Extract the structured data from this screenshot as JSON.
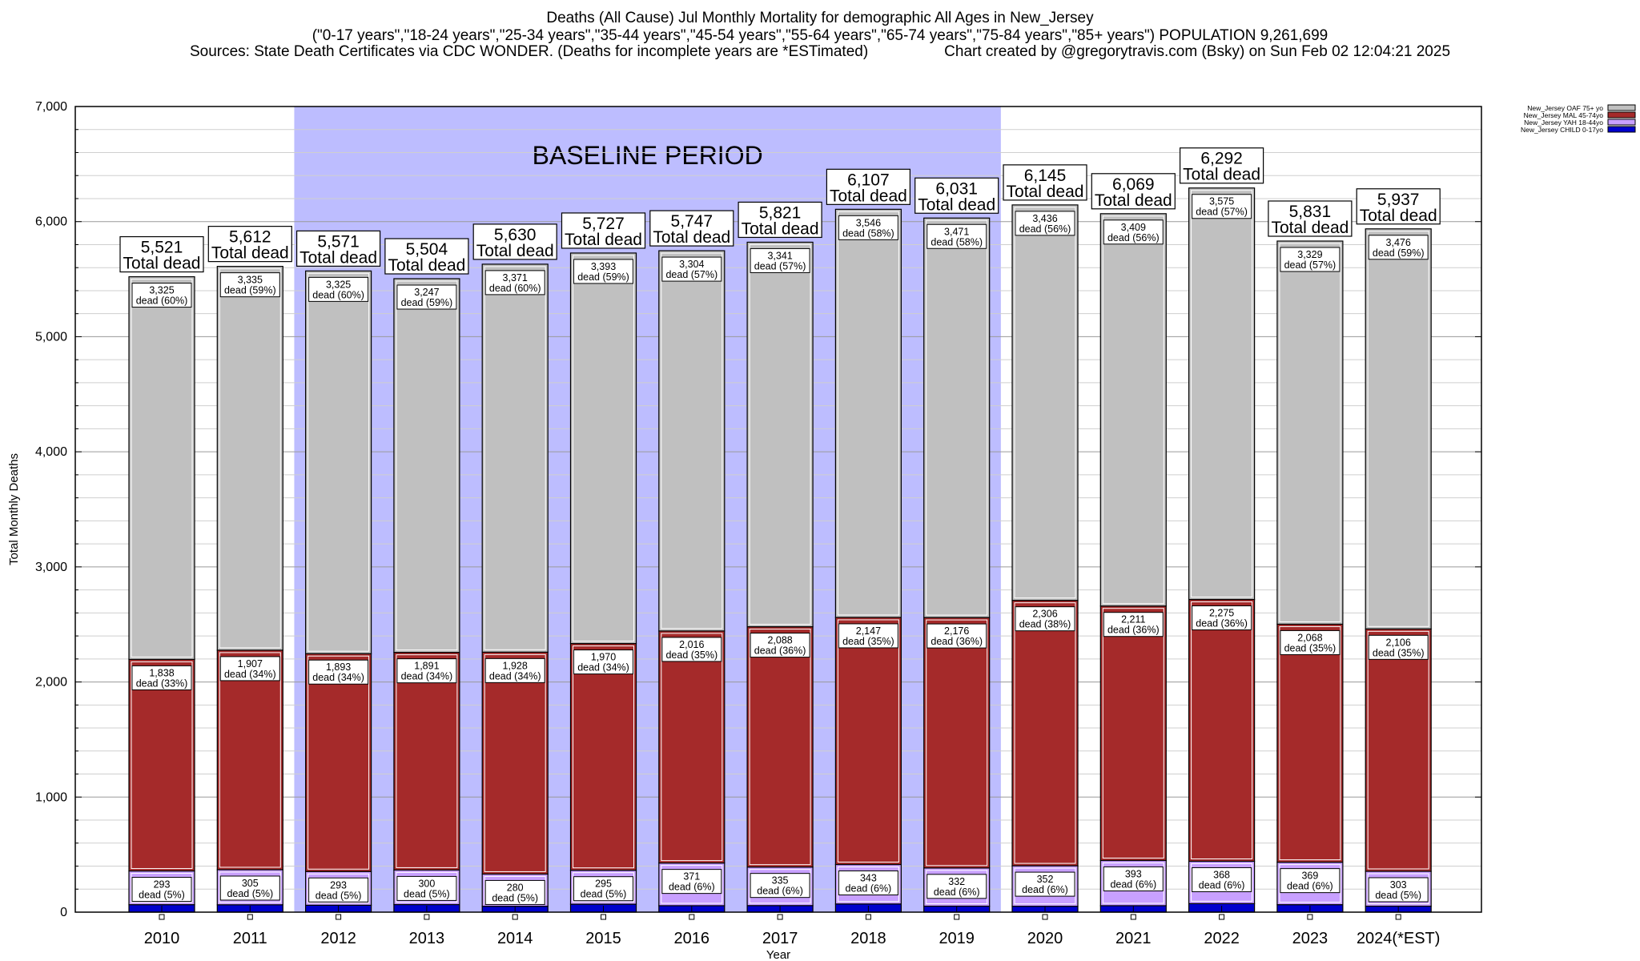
{
  "header": {
    "title": "Deaths (All Cause) Jul Monthly Mortality for demographic All Ages in New_Jersey",
    "subtitle": "(\"0-17 years\",\"18-24 years\",\"25-34 years\",\"35-44 years\",\"45-54 years\",\"55-64 years\",\"65-74 years\",\"75-84 years\",\"85+ years\") POPULATION 9,261,699",
    "sources": "Sources: State Death Certificates via CDC WONDER. (Deaths for incomplete years are *ESTimated)",
    "credit": "Chart created by @gregorytravis.com (Bsky) on Sun Feb 02 12:04:21 2025"
  },
  "chart_data": {
    "type": "bar",
    "stacked": true,
    "xlabel": "Year",
    "ylabel": "Total Monthly Deaths",
    "ylim": [
      0,
      7000
    ],
    "yticks": [
      "0",
      "1,000",
      "2,000",
      "3,000",
      "4,000",
      "5,000",
      "6,000",
      "7,000"
    ],
    "ytick_values": [
      0,
      1000,
      2000,
      3000,
      4000,
      5000,
      6000,
      7000
    ],
    "grid": true,
    "legend_position": "top-right",
    "baseline_label": "BASELINE PERIOD",
    "baseline_range": [
      "2012",
      "2019"
    ],
    "total_label": "Total dead",
    "categories": [
      "2010",
      "2011",
      "2012",
      "2013",
      "2014",
      "2015",
      "2016",
      "2017",
      "2018",
      "2019",
      "2020",
      "2021",
      "2022",
      "2023",
      "2024(*EST)"
    ],
    "totals": [
      "5,521",
      "5,612",
      "5,571",
      "5,504",
      "5,630",
      "5,727",
      "5,747",
      "5,821",
      "6,107",
      "6,031",
      "6,145",
      "6,069",
      "6,292",
      "5,831",
      "5,937"
    ],
    "series": [
      {
        "name": "New_Jersey CHILD 0-17yo",
        "color": "#0000cc",
        "values": [
          65,
          64,
          60,
          66,
          51,
          69,
          56,
          57,
          71,
          52,
          51,
          56,
          74,
          65,
          52
        ]
      },
      {
        "name": "New_Jersey YAH 18-44yo",
        "color": "#c8a0ff",
        "values": [
          293,
          305,
          293,
          300,
          280,
          295,
          371,
          335,
          343,
          332,
          352,
          393,
          368,
          369,
          303
        ],
        "labels": [
          "293\ndead (5%)",
          "305\ndead (5%)",
          "293\ndead (5%)",
          "300\ndead (5%)",
          "280\ndead (5%)",
          "295\ndead (5%)",
          "371\ndead (6%)",
          "335\ndead (6%)",
          "343\ndead (6%)",
          "332\ndead (6%)",
          "352\ndead (6%)",
          "393\ndead (6%)",
          "368\ndead (6%)",
          "369\ndead (6%)",
          "303\ndead (5%)"
        ]
      },
      {
        "name": "New_Jersey MAL 45-74yo",
        "color": "#a52a2a",
        "values": [
          1838,
          1907,
          1893,
          1891,
          1928,
          1970,
          2016,
          2088,
          2147,
          2176,
          2306,
          2211,
          2275,
          2068,
          2106
        ],
        "labels": [
          "1,838\ndead (33%)",
          "1,907\ndead (34%)",
          "1,893\ndead (34%)",
          "1,891\ndead (34%)",
          "1,928\ndead (34%)",
          "1,970\ndead (34%)",
          "2,016\ndead (35%)",
          "2,088\ndead (36%)",
          "2,147\ndead (35%)",
          "2,176\ndead (36%)",
          "2,306\ndead (38%)",
          "2,211\ndead (36%)",
          "2,275\ndead (36%)",
          "2,068\ndead (35%)",
          "2,106\ndead (35%)"
        ]
      },
      {
        "name": "New_Jersey OAF 75+ yo",
        "color": "#c0c0c0",
        "values": [
          3325,
          3335,
          3325,
          3247,
          3371,
          3393,
          3304,
          3341,
          3546,
          3471,
          3436,
          3409,
          3575,
          3329,
          3476
        ],
        "labels": [
          "3,325\ndead (60%)",
          "3,335\ndead (59%)",
          "3,325\ndead (60%)",
          "3,247\ndead (59%)",
          "3,371\ndead (60%)",
          "3,393\ndead (59%)",
          "3,304\ndead (57%)",
          "3,341\ndead (57%)",
          "3,546\ndead (58%)",
          "3,471\ndead (58%)",
          "3,436\ndead (56%)",
          "3,409\ndead (56%)",
          "3,575\ndead (57%)",
          "3,329\ndead (57%)",
          "3,476\ndead (59%)"
        ]
      }
    ],
    "legend_order": [
      "New_Jersey OAF 75+ yo",
      "New_Jersey MAL 45-74yo",
      "New_Jersey YAH 18-44yo",
      "New_Jersey CHILD 0-17yo"
    ]
  }
}
